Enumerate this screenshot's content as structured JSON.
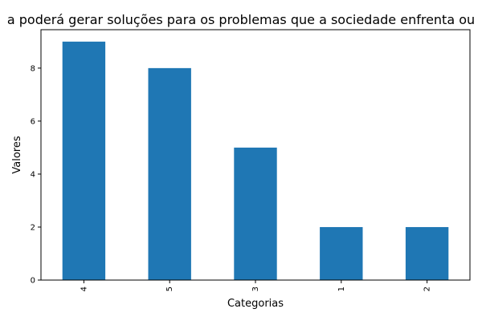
{
  "chart_data": {
    "type": "bar",
    "title": "a poderá gerar soluções para os problemas que a sociedade enfrenta ou",
    "xlabel": "Categorias",
    "ylabel": "Valores",
    "categories": [
      "4",
      "5",
      "3",
      "1",
      "2"
    ],
    "values": [
      9,
      8,
      5,
      2,
      2
    ],
    "ylim": [
      0,
      9.45
    ],
    "yticks": [
      0,
      2,
      4,
      6,
      8
    ],
    "bar_color": "#1f77b4",
    "grid": false,
    "legend": "none"
  }
}
